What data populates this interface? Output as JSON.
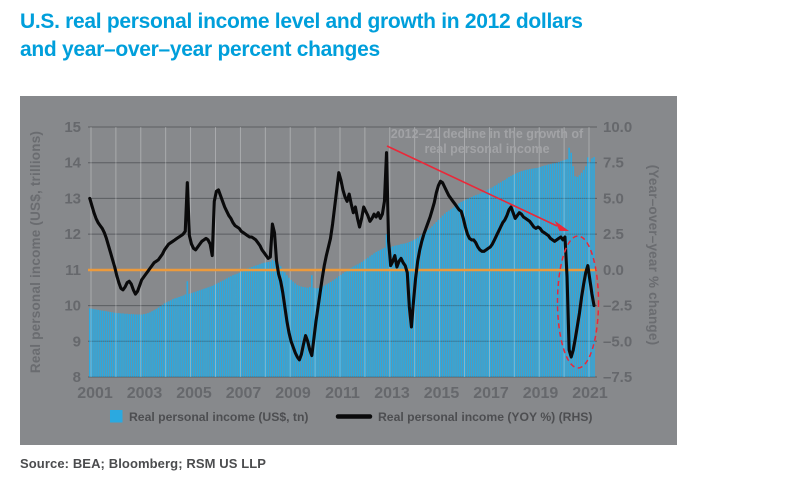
{
  "page": {
    "title_line1": "U.S. real personal income level and growth in 2012 dollars",
    "title_line2": "and year–over–year percent changes",
    "source": "Source: BEA; Bloomberg; RSM US LLP"
  },
  "colors": {
    "title_blue": "#009FDB",
    "plot_background": "#87898C",
    "bar_blue": "#2BA9E0",
    "yoy_line_black": "#0A0A0B",
    "zero_line_orange": "#EC9A3C",
    "annotation_red": "#EA2839",
    "gridline_gray": "#6E7073",
    "tick_text_gray": "#66686C",
    "annotation_text_gray": "#A2A3A6",
    "legend_text_gray": "#4D4E51"
  },
  "chart_data": {
    "type": "combo-bar-line",
    "frequency": "monthly",
    "x_start": "2001-01",
    "x_end": "2021-04",
    "grid": true,
    "legend_position": "bottom",
    "x_axis": {
      "tick_labels": [
        "2001",
        "2003",
        "2005",
        "2007",
        "2009",
        "2011",
        "2013",
        "2015",
        "2017",
        "2019",
        "2021"
      ],
      "tick_values": [
        2001,
        2003,
        2005,
        2007,
        2009,
        2011,
        2013,
        2015,
        2017,
        2019,
        2021
      ]
    },
    "left_axis": {
      "title": "Real personal income (US$, trillions)",
      "range": [
        8,
        15
      ],
      "tick_labels": [
        "8",
        "9",
        "10",
        "11",
        "12",
        "13",
        "14",
        "15"
      ],
      "tick_values": [
        8,
        9,
        10,
        11,
        12,
        13,
        14,
        15
      ]
    },
    "right_axis": {
      "title": "(Year–over–year % change)",
      "range": [
        -7.5,
        10.0
      ],
      "tick_labels": [
        "10.0",
        "7.5",
        "5.0",
        "2.5",
        "0.0",
        "–2.5",
        "–5.0",
        "–7.5"
      ],
      "tick_values": [
        10,
        7.5,
        5,
        2.5,
        0,
        -2.5,
        -5,
        -7.5
      ]
    },
    "zero_line_right_value": 0.0,
    "annotation": {
      "text_line1": "2012–21 decline in the growth of",
      "text_line2": "real personal income"
    },
    "series": [
      {
        "name": "Real personal income (US$, tn)",
        "type": "bar",
        "axis": "left",
        "color": "#2BA9E0",
        "values": [
          9.92,
          9.91,
          9.9,
          9.89,
          9.88,
          9.87,
          9.86,
          9.85,
          9.84,
          9.83,
          9.82,
          9.81,
          9.8,
          9.79,
          9.79,
          9.78,
          9.78,
          9.77,
          9.77,
          9.76,
          9.76,
          9.76,
          9.75,
          9.75,
          9.75,
          9.75,
          9.76,
          9.77,
          9.79,
          9.81,
          9.84,
          9.87,
          9.9,
          9.94,
          9.98,
          10.02,
          10.06,
          10.09,
          10.12,
          10.15,
          10.18,
          10.2,
          10.22,
          10.24,
          10.26,
          10.28,
          10.31,
          10.68,
          10.33,
          10.35,
          10.37,
          10.39,
          10.41,
          10.43,
          10.45,
          10.47,
          10.49,
          10.51,
          10.53,
          10.55,
          10.58,
          10.61,
          10.64,
          10.67,
          10.7,
          10.73,
          10.76,
          10.79,
          10.82,
          10.85,
          10.87,
          10.89,
          10.92,
          10.95,
          10.98,
          11.01,
          11.04,
          11.06,
          11.08,
          11.1,
          11.12,
          11.14,
          11.16,
          11.18,
          11.2,
          11.21,
          11.22,
          11.23,
          11.28,
          11.25,
          11.21,
          11.16,
          11.1,
          11.02,
          10.93,
          10.85,
          10.78,
          10.72,
          10.67,
          10.62,
          10.58,
          10.55,
          10.53,
          10.52,
          10.51,
          10.5,
          10.52,
          10.85,
          10.5,
          10.48,
          10.49,
          10.51,
          10.53,
          10.56,
          10.59,
          10.62,
          10.66,
          10.7,
          10.74,
          10.78,
          10.82,
          10.86,
          10.9,
          10.94,
          10.98,
          11.02,
          11.06,
          11.09,
          11.12,
          11.15,
          11.18,
          11.22,
          11.26,
          11.3,
          11.34,
          11.38,
          11.42,
          11.46,
          11.5,
          11.53,
          11.56,
          11.59,
          11.62,
          12.0,
          11.68,
          11.64,
          11.66,
          11.68,
          11.69,
          11.7,
          11.72,
          11.73,
          11.74,
          11.76,
          11.78,
          11.8,
          11.83,
          11.86,
          11.9,
          11.94,
          11.98,
          12.02,
          12.07,
          12.12,
          12.17,
          12.22,
          12.28,
          12.34,
          12.4,
          12.46,
          12.52,
          12.57,
          12.62,
          12.66,
          12.7,
          12.74,
          12.78,
          12.82,
          12.86,
          12.9,
          12.93,
          12.96,
          12.99,
          13.02,
          13.04,
          13.07,
          13.09,
          13.11,
          13.13,
          13.16,
          13.19,
          13.22,
          13.25,
          13.28,
          13.31,
          13.35,
          13.38,
          13.42,
          13.45,
          13.49,
          13.52,
          13.56,
          13.6,
          13.63,
          13.66,
          13.69,
          13.72,
          13.74,
          13.76,
          13.78,
          13.8,
          13.81,
          13.82,
          13.83,
          13.84,
          13.85,
          13.86,
          13.88,
          13.9,
          13.92,
          13.93,
          13.95,
          13.96,
          13.98,
          13.99,
          14.0,
          14.02,
          14.04,
          14.06,
          14.08,
          14.1,
          14.42,
          14.28,
          13.9,
          13.62,
          13.6,
          13.65,
          13.72,
          13.8,
          13.9,
          14.15,
          14.02,
          14.12,
          14.16
        ]
      },
      {
        "name": "Real personal income (YOY %) (RHS)",
        "type": "line",
        "axis": "right",
        "color": "#0A0A0B",
        "values": [
          5.0,
          4.5,
          4.0,
          3.6,
          3.3,
          3.1,
          2.9,
          2.6,
          2.2,
          1.7,
          1.2,
          0.7,
          0.2,
          -0.4,
          -0.9,
          -1.3,
          -1.4,
          -1.2,
          -0.9,
          -0.8,
          -1.0,
          -1.4,
          -1.7,
          -1.5,
          -1.1,
          -0.7,
          -0.5,
          -0.3,
          -0.1,
          0.1,
          0.3,
          0.5,
          0.6,
          0.7,
          0.9,
          1.1,
          1.4,
          1.6,
          1.8,
          1.9,
          2.0,
          2.1,
          2.2,
          2.3,
          2.4,
          2.5,
          2.7,
          6.1,
          2.4,
          1.8,
          1.5,
          1.4,
          1.6,
          1.8,
          2.0,
          2.1,
          2.2,
          2.1,
          1.8,
          1.0,
          4.8,
          5.5,
          5.6,
          5.2,
          4.8,
          4.4,
          4.1,
          3.8,
          3.6,
          3.3,
          3.1,
          3.0,
          2.9,
          2.7,
          2.6,
          2.5,
          2.4,
          2.3,
          2.3,
          2.2,
          2.1,
          1.9,
          1.7,
          1.4,
          1.2,
          1.0,
          0.8,
          0.9,
          3.2,
          2.6,
          0.6,
          -0.3,
          -0.8,
          -1.6,
          -2.6,
          -3.6,
          -4.4,
          -5.0,
          -5.4,
          -5.8,
          -6.1,
          -6.3,
          -5.9,
          -5.2,
          -4.6,
          -5.0,
          -5.6,
          -6.0,
          -4.8,
          -3.6,
          -2.6,
          -1.6,
          -0.6,
          0.3,
          1.0,
          1.6,
          2.2,
          3.2,
          4.4,
          5.6,
          6.8,
          6.3,
          5.6,
          5.1,
          4.8,
          5.3,
          4.6,
          4.0,
          4.4,
          3.6,
          3.0,
          3.6,
          4.4,
          4.1,
          3.8,
          3.4,
          3.6,
          3.9,
          3.7,
          4.0,
          3.6,
          3.9,
          4.8,
          8.2,
          2.0,
          0.3,
          0.6,
          1.0,
          0.2,
          0.6,
          0.8,
          0.5,
          0.3,
          -0.2,
          -2.6,
          -4.0,
          -2.2,
          -0.6,
          0.6,
          1.4,
          2.0,
          2.5,
          2.9,
          3.3,
          3.7,
          4.2,
          4.7,
          5.4,
          5.9,
          6.2,
          6.1,
          5.8,
          5.5,
          5.2,
          5.0,
          4.8,
          4.6,
          4.4,
          4.2,
          4.1,
          3.6,
          3.0,
          2.5,
          2.2,
          2.1,
          2.1,
          1.9,
          1.6,
          1.4,
          1.3,
          1.3,
          1.4,
          1.5,
          1.6,
          1.8,
          2.1,
          2.4,
          2.7,
          3.0,
          3.3,
          3.5,
          3.8,
          4.2,
          4.4,
          4.0,
          3.6,
          3.8,
          4.0,
          3.9,
          3.7,
          3.6,
          3.5,
          3.4,
          3.2,
          3.0,
          2.9,
          3.0,
          2.9,
          2.7,
          2.6,
          2.5,
          2.4,
          2.2,
          2.1,
          2.0,
          2.1,
          2.2,
          2.3,
          2.1,
          2.3,
          -0.5,
          -5.6,
          -6.1,
          -5.6,
          -4.8,
          -3.9,
          -3.0,
          -1.9,
          -1.0,
          -0.2,
          0.3,
          -0.7,
          -1.7,
          -2.5
        ]
      }
    ]
  }
}
